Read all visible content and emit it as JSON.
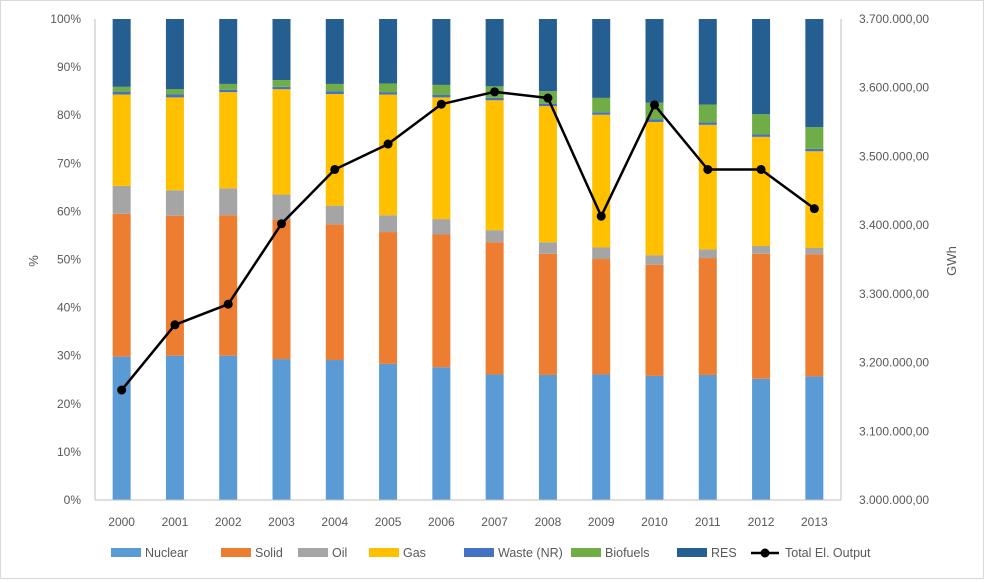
{
  "chart_data": {
    "type": "bar",
    "stacked": true,
    "percent_stacked": true,
    "categories": [
      "2000",
      "2001",
      "2002",
      "2003",
      "2004",
      "2005",
      "2006",
      "2007",
      "2008",
      "2009",
      "2010",
      "2011",
      "2012",
      "2013"
    ],
    "series": [
      {
        "name": "Nuclear",
        "color": "#5b9bd5",
        "values": [
          29.8,
          30.0,
          30.0,
          29.3,
          29.1,
          28.3,
          27.6,
          26.1,
          26.0,
          26.1,
          25.8,
          26.0,
          25.2,
          25.7
        ]
      },
      {
        "name": "Solid",
        "color": "#ed7d31",
        "values": [
          29.7,
          29.1,
          29.2,
          29.0,
          28.2,
          27.4,
          27.6,
          27.5,
          25.2,
          24.0,
          23.1,
          24.3,
          26.0,
          25.4
        ]
      },
      {
        "name": "Oil",
        "color": "#a5a5a5",
        "values": [
          5.8,
          5.3,
          5.6,
          5.2,
          3.9,
          3.5,
          3.2,
          2.5,
          2.4,
          2.4,
          2.0,
          1.8,
          1.6,
          1.3
        ]
      },
      {
        "name": "Gas",
        "color": "#ffc000",
        "values": [
          19.0,
          19.3,
          20.0,
          21.9,
          23.2,
          25.1,
          25.3,
          27.0,
          28.3,
          27.6,
          27.7,
          25.9,
          22.7,
          20.1
        ]
      },
      {
        "name": "Waste (NR)",
        "color": "#4472c4",
        "values": [
          0.6,
          0.6,
          0.5,
          0.5,
          0.6,
          0.5,
          0.5,
          0.5,
          0.5,
          0.5,
          0.5,
          0.5,
          0.5,
          0.5
        ]
      },
      {
        "name": "Biofuels",
        "color": "#70ad47",
        "values": [
          1.0,
          1.1,
          1.2,
          1.4,
          1.5,
          1.8,
          2.1,
          2.4,
          2.6,
          3.0,
          3.5,
          3.7,
          4.2,
          4.5
        ]
      },
      {
        "name": "RES",
        "color": "#255e91",
        "values": [
          14.1,
          14.6,
          13.5,
          12.7,
          13.5,
          13.4,
          13.7,
          14.0,
          15.0,
          16.4,
          17.4,
          17.8,
          19.8,
          22.5
        ]
      }
    ],
    "line": {
      "name": "Total El. Output",
      "color": "#000000",
      "axis": "secondary",
      "values": [
        3160000,
        3255000,
        3285000,
        3402000,
        3481000,
        3518000,
        3576000,
        3594000,
        3585000,
        3413000,
        3575000,
        3481000,
        3481000,
        3424000
      ]
    },
    "y_primary": {
      "label": "%",
      "ylim": [
        0,
        100
      ],
      "ticks": [
        "0%",
        "10%",
        "20%",
        "30%",
        "40%",
        "50%",
        "60%",
        "70%",
        "80%",
        "90%",
        "100%"
      ]
    },
    "y_secondary": {
      "label": "GWh",
      "ylim": [
        3000000,
        3700000
      ],
      "ticks": [
        "3.000.000,00",
        "3.100.000,00",
        "3.200.000,00",
        "3.300.000,00",
        "3.400.000,00",
        "3.500.000,00",
        "3.600.000,00",
        "3.700.000,00"
      ]
    },
    "legend": {
      "position": "bottom"
    },
    "grid": false
  }
}
